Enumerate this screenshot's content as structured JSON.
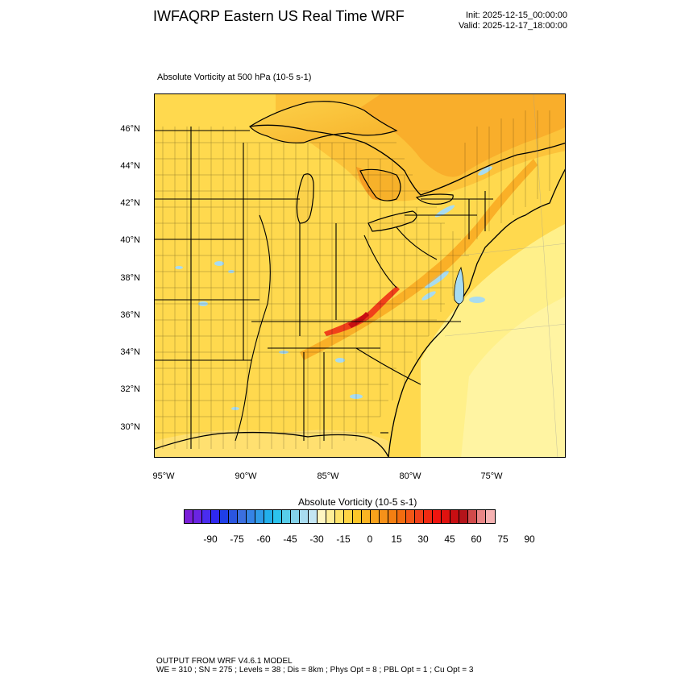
{
  "header": {
    "title": "IWFAQRP Eastern US Real Time WRF",
    "init": "Init: 2025-12-15_00:00:00",
    "valid": "Valid: 2025-12-17_18:00:00"
  },
  "map": {
    "subtitle": "Absolute Vorticity at 500 hPa   (10-5 s-1)",
    "lat_labels": [
      "46°N",
      "44°N",
      "42°N",
      "40°N",
      "38°N",
      "36°N",
      "34°N",
      "32°N",
      "30°N"
    ],
    "lon_labels": [
      "95°W",
      "90°W",
      "85°W",
      "80°W",
      "75°W"
    ]
  },
  "colorbar": {
    "title": "Absolute Vorticity  (10-5 s-1)",
    "labels": [
      "-90",
      "-75",
      "-60",
      "-45",
      "-30",
      "-15",
      "0",
      "15",
      "30",
      "45",
      "60",
      "75",
      "90"
    ],
    "colors": [
      "#7b1fd9",
      "#6a24e3",
      "#4a2cef",
      "#2f28f0",
      "#1f3fe8",
      "#2a55e0",
      "#3b6fe0",
      "#3583e6",
      "#2f9be8",
      "#22b0ec",
      "#2cc3ee",
      "#58cdea",
      "#83d2ea",
      "#a8dcf0",
      "#c4e6f4",
      "#fff6c2",
      "#ffee98",
      "#ffe36a",
      "#ffd445",
      "#fcc629",
      "#fab423",
      "#f8a21b",
      "#f6911a",
      "#f47f12",
      "#f26c0f",
      "#f25716",
      "#f0401a",
      "#f02a12",
      "#f0150f",
      "#e0120f",
      "#c80e12",
      "#b4141a",
      "#d14a4a",
      "#e98585",
      "#f6b2b2"
    ]
  },
  "footer": {
    "line1": "OUTPUT FROM WRF V4.6.1 MODEL",
    "line2": "WE = 310 ; SN = 275 ; Levels = 38 ; Dis = 8km ; Phys Opt = 8 ; PBL Opt = 1 ; Cu Opt = 3"
  }
}
